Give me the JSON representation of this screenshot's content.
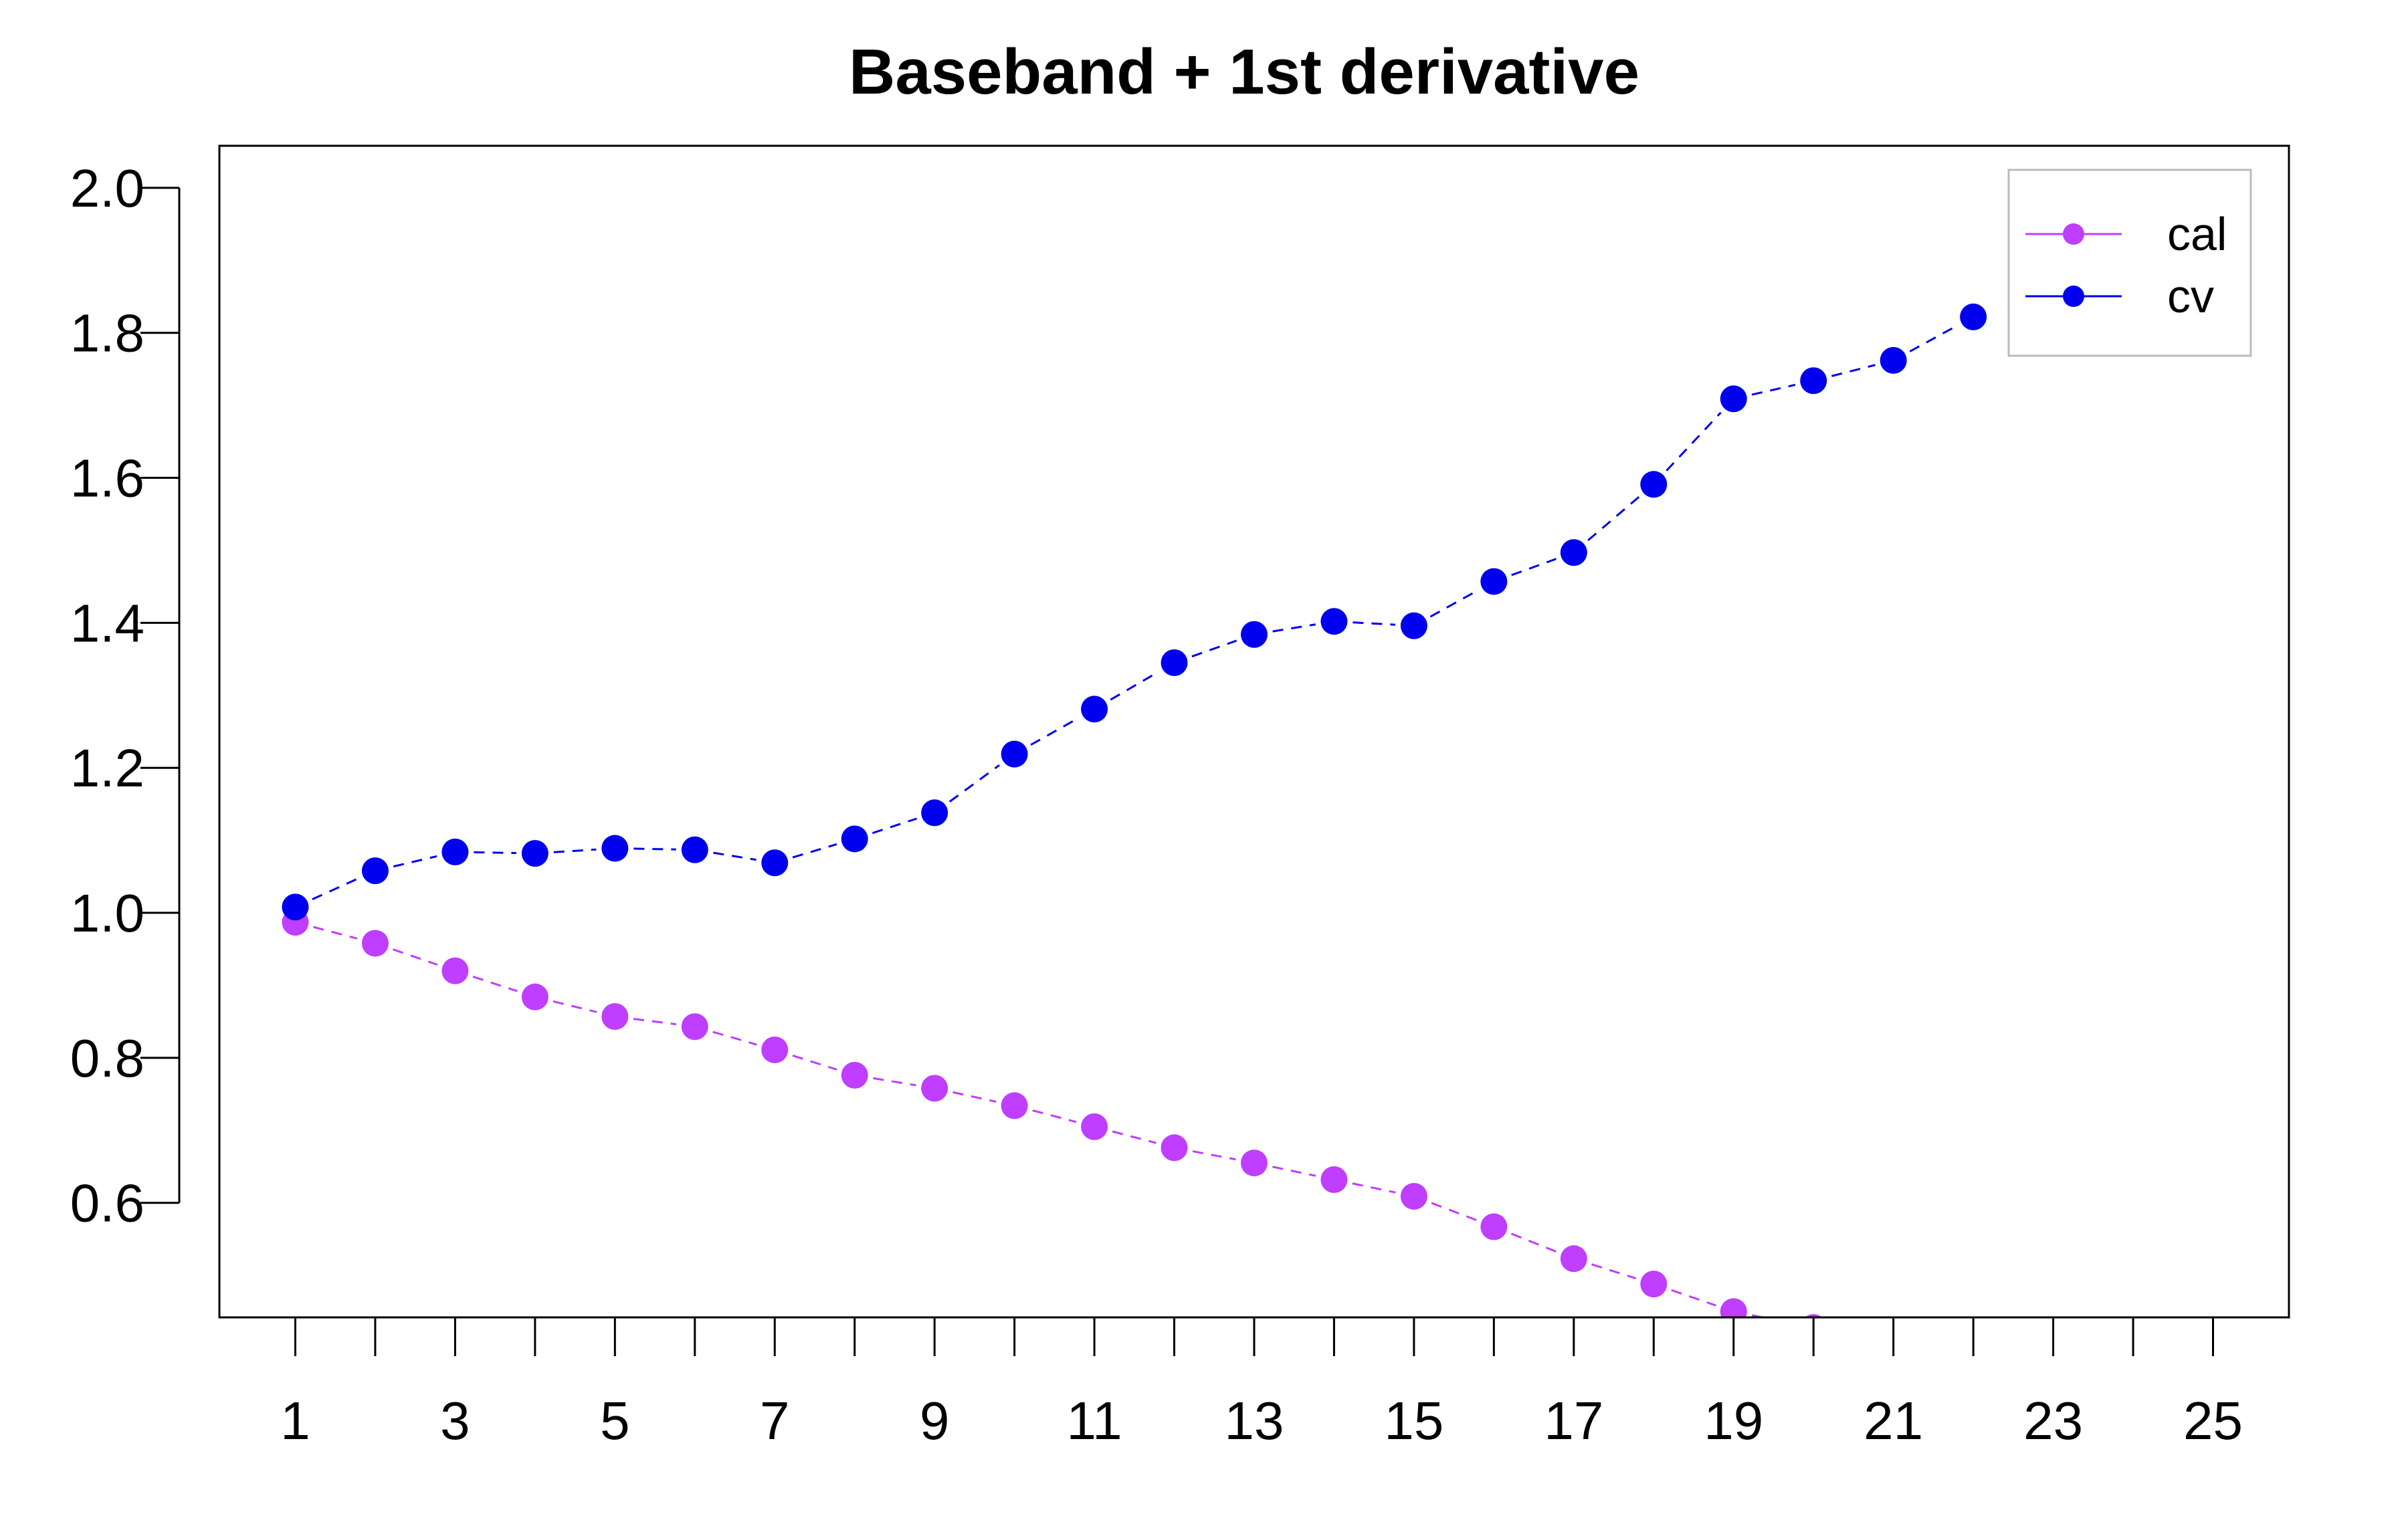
{
  "chart_data": {
    "type": "line",
    "title": "Baseband + 1st derivative",
    "xlabel": "",
    "ylabel": "",
    "xlim": [
      0.05,
      25.95
    ],
    "ylim": [
      0.442,
      2.058
    ],
    "x_ticks": [
      1,
      2,
      3,
      4,
      5,
      6,
      7,
      8,
      9,
      10,
      11,
      12,
      13,
      14,
      15,
      16,
      17,
      18,
      19,
      20,
      21,
      22,
      23,
      24,
      25
    ],
    "x_tick_labels": [
      "1",
      "3",
      "5",
      "7",
      "9",
      "11",
      "13",
      "15",
      "17",
      "19",
      "21",
      "23",
      "25"
    ],
    "y_ticks": [
      "0.6",
      "0.8",
      "1.0",
      "1.2",
      "1.4",
      "1.6",
      "1.8",
      "2.0"
    ],
    "grid": false,
    "legend_position": "top-right",
    "series": [
      {
        "name": "cal",
        "color": "#BF3EFF",
        "x": [
          1,
          2,
          3,
          4,
          5,
          6,
          7,
          8,
          9,
          10,
          11,
          12,
          13,
          14,
          15,
          16,
          17,
          18,
          19,
          20
        ],
        "values": [
          0.987,
          0.958,
          0.92,
          0.884,
          0.857,
          0.843,
          0.811,
          0.776,
          0.758,
          0.734,
          0.705,
          0.676,
          0.655,
          0.632,
          0.609,
          0.567,
          0.523,
          0.488,
          0.45,
          0.428
        ]
      },
      {
        "name": "cv",
        "color": "#0000EE",
        "x": [
          1,
          2,
          3,
          4,
          5,
          6,
          7,
          8,
          9,
          10,
          11,
          12,
          13,
          14,
          15,
          16,
          17,
          18,
          19,
          20,
          21,
          22
        ],
        "values": [
          1.008,
          1.058,
          1.084,
          1.082,
          1.089,
          1.087,
          1.069,
          1.102,
          1.138,
          1.219,
          1.281,
          1.345,
          1.384,
          1.402,
          1.396,
          1.457,
          1.497,
          1.591,
          1.709,
          1.734,
          1.762,
          1.822
        ]
      }
    ]
  }
}
